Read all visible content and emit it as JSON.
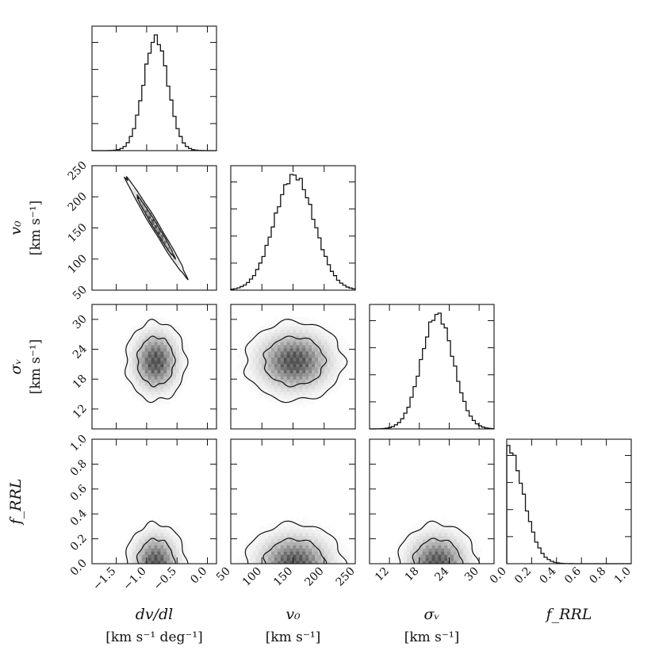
{
  "chart_data": {
    "type": "corner",
    "parameters": [
      {
        "key": "dvdl",
        "label_main": "dv/dl",
        "label_units": "[km s⁻¹ deg⁻¹]",
        "range": [
          -1.9,
          0.15
        ],
        "ticks": [
          -1.5,
          -1.0,
          -0.5,
          0.0
        ],
        "tick_labels": [
          "−1.5",
          "−1.0",
          "−0.5",
          "0.0"
        ],
        "mean": -0.85,
        "sd": 0.2
      },
      {
        "key": "v0",
        "label_main": "v₀",
        "label_units": "[km s⁻¹]",
        "range": [
          50,
          250
        ],
        "ticks": [
          50,
          100,
          150,
          200,
          250
        ],
        "tick_labels": [
          "50",
          "100",
          "150",
          "200",
          "250"
        ],
        "mean": 152,
        "sd": 32
      },
      {
        "key": "sigma_v",
        "label_main": "σᵥ",
        "label_units": "[km s⁻¹]",
        "range": [
          8,
          33
        ],
        "ticks": [
          12,
          18,
          24,
          30
        ],
        "tick_labels": [
          "12",
          "18",
          "24",
          "30"
        ],
        "mean": 21.6,
        "sd": 3.2
      },
      {
        "key": "f_rrl",
        "label_main": "f_RRL",
        "label_units": "",
        "range": [
          0.0,
          1.0
        ],
        "ticks": [
          0.0,
          0.2,
          0.4,
          0.6,
          0.8,
          1.0
        ],
        "tick_labels": [
          "0.0",
          "0.2",
          "0.4",
          "0.6",
          "0.8",
          "1.0"
        ],
        "mean": 0.0,
        "sd": 0.13
      }
    ],
    "y_labels": [
      {
        "row": 1,
        "main": "v₀",
        "units": "[km s⁻¹]"
      },
      {
        "row": 2,
        "main": "σᵥ",
        "units": "[km s⁻¹]"
      },
      {
        "row": 3,
        "main": "f_RRL",
        "units": ""
      }
    ],
    "histograms": [
      {
        "param": "dvdl",
        "bins": 40,
        "shape": "gaussian"
      },
      {
        "param": "v0",
        "bins": 40,
        "shape": "gaussian"
      },
      {
        "param": "sigma_v",
        "bins": 40,
        "shape": "gaussian"
      },
      {
        "param": "f_rrl",
        "bins": 40,
        "shape": "half-gaussian"
      }
    ],
    "joint_panels": [
      {
        "x": "dvdl",
        "y": "v0",
        "correlation": -0.99
      },
      {
        "x": "dvdl",
        "y": "sigma_v",
        "correlation": 0.0
      },
      {
        "x": "v0",
        "y": "sigma_v",
        "correlation": 0.0
      },
      {
        "x": "dvdl",
        "y": "f_rrl",
        "correlation": 0.0
      },
      {
        "x": "v0",
        "y": "f_rrl",
        "correlation": 0.0
      },
      {
        "x": "sigma_v",
        "y": "f_rrl",
        "correlation": 0.0
      }
    ],
    "contour_levels_sigma": [
      1,
      2
    ]
  }
}
